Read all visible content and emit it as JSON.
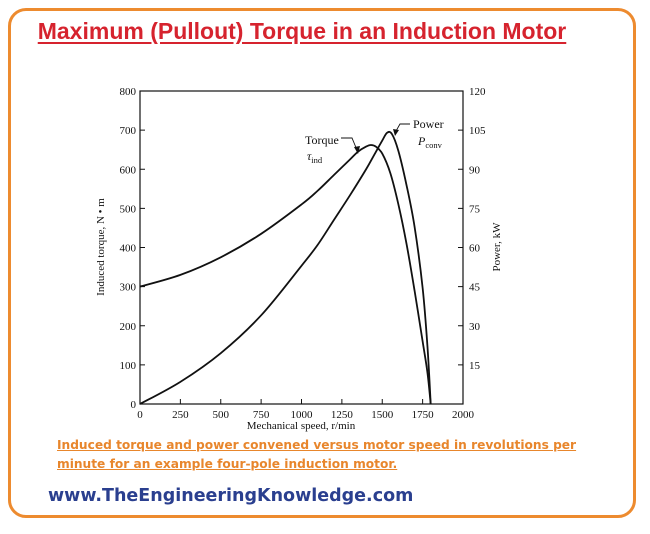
{
  "page": {
    "title": "Maximum (Pullout) Torque in an Induction Motor",
    "caption": "Induced torque and power convened versus motor speed in revolutions per minute for an example four-pole induction motor.",
    "website": "www.TheEngineeringKnowledge.com",
    "colors": {
      "frame": "#ED8B2F",
      "title": "#D6232E",
      "caption": "#E8862C",
      "website": "#2A3F8F"
    }
  },
  "chart_data": {
    "type": "line",
    "title": "",
    "xlabel": "Mechanical speed, r/min",
    "ylabel": "Induced torque, N • m",
    "y2label": "Power, kW",
    "xlim": [
      0,
      2000
    ],
    "ylim": [
      0,
      800
    ],
    "y2lim": [
      0,
      120
    ],
    "xticks": [
      0,
      250,
      500,
      750,
      1000,
      1250,
      1500,
      1750,
      2000
    ],
    "yticks": [
      0,
      100,
      200,
      300,
      400,
      500,
      600,
      700,
      800
    ],
    "y2ticks": [
      15,
      30,
      45,
      60,
      75,
      90,
      105,
      120
    ],
    "grid": false,
    "series": [
      {
        "name": "Torque",
        "symbol": "τ",
        "subscript": "ind",
        "axis": "left",
        "x": [
          0,
          250,
          500,
          750,
          1000,
          1100,
          1200,
          1300,
          1350,
          1400,
          1430,
          1460,
          1500,
          1550,
          1600,
          1650,
          1700,
          1750,
          1780,
          1800
        ],
        "y": [
          300,
          330,
          375,
          435,
          510,
          545,
          585,
          625,
          645,
          658,
          662,
          658,
          640,
          590,
          510,
          410,
          290,
          160,
          80,
          0
        ]
      },
      {
        "name": "Power",
        "symbol": "P",
        "subscript": "conv",
        "axis": "right",
        "x": [
          0,
          250,
          500,
          750,
          1000,
          1100,
          1200,
          1300,
          1400,
          1450,
          1500,
          1530,
          1560,
          1600,
          1650,
          1700,
          1750,
          1780,
          1800
        ],
        "y": [
          0,
          8.5,
          19.5,
          34,
          53,
          61,
          70.5,
          80,
          90,
          95.5,
          101,
          104,
          103.5,
          97,
          84,
          68,
          44.5,
          22,
          0
        ]
      }
    ]
  }
}
